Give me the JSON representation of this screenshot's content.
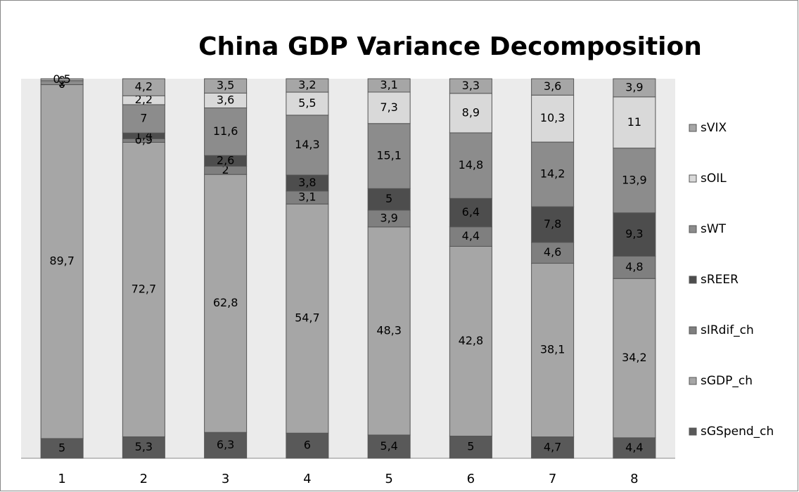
{
  "chart_data": {
    "type": "bar",
    "stacking": "percent",
    "title": "China GDP Variance Decomposition",
    "categories": [
      "1",
      "2",
      "3",
      "4",
      "5",
      "6",
      "7",
      "8"
    ],
    "series": [
      {
        "name": "sGSpend_ch",
        "color": "#595959",
        "values": [
          5,
          5.3,
          6.3,
          6,
          5.4,
          5,
          4.7,
          4.4
        ],
        "value_labels": [
          "5",
          "5,3",
          "6,3",
          "6",
          "5,4",
          "5",
          "4,7",
          "4,4"
        ]
      },
      {
        "name": "sGDP_ch",
        "color": "#a6a6a6",
        "values": [
          89.7,
          72.7,
          62.8,
          54.7,
          48.3,
          42.8,
          38.1,
          34.2
        ],
        "value_labels": [
          "89,7",
          "72,7",
          "62,8",
          "54,7",
          "48,3",
          "42,8",
          "38,1",
          "34,2"
        ]
      },
      {
        "name": "sIRdif_ch",
        "color": "#7f7f7f",
        "values": [
          0,
          0.9,
          2,
          3.1,
          3.9,
          4.4,
          4.6,
          4.8
        ],
        "value_labels": [
          "0",
          "0,9",
          "2",
          "3,1",
          "3,9",
          "4,4",
          "4,6",
          "4,8"
        ]
      },
      {
        "name": "sREER",
        "color": "#4d4d4d",
        "values": [
          0,
          1.4,
          2.6,
          3.8,
          5,
          6.4,
          7.8,
          9.3
        ],
        "value_labels": [
          "0",
          "1,4",
          "2,6",
          "3,8",
          "5",
          "6,4",
          "7,8",
          "9,3"
        ]
      },
      {
        "name": "sWT",
        "color": "#8c8c8c",
        "values": [
          1,
          7,
          11.6,
          14.3,
          15.1,
          14.8,
          14.2,
          13.9
        ],
        "value_labels": [
          "1",
          "7",
          "11,6",
          "14,3",
          "15,1",
          "14,8",
          "14,2",
          "13,9"
        ]
      },
      {
        "name": "sOIL",
        "color": "#d9d9d9",
        "values": [
          0,
          2.2,
          3.6,
          5.5,
          7.3,
          8.9,
          10.3,
          11
        ],
        "value_labels": [
          "0",
          "2,2",
          "3,6",
          "5,5",
          "7,3",
          "8,9",
          "10,3",
          "11"
        ]
      },
      {
        "name": "sVIX",
        "color": "#a6a6a6",
        "values": [
          0.5,
          4.2,
          3.5,
          3.2,
          3.1,
          3.3,
          3.6,
          3.9
        ],
        "value_labels": [
          "0,5",
          "4,2",
          "3,5",
          "3,2",
          "3,1",
          "3,3",
          "3,6",
          "3,9"
        ]
      }
    ],
    "legend": "right"
  }
}
